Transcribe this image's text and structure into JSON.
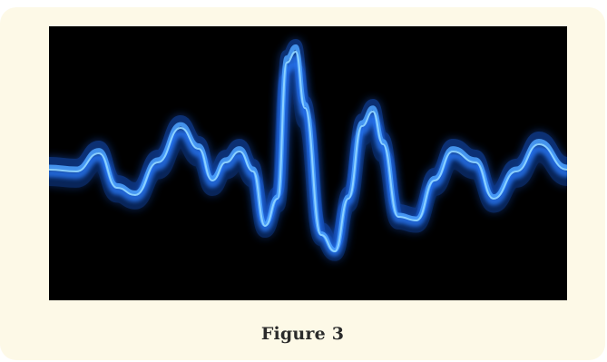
{
  "figure": {
    "caption": "Figure 3",
    "image_subject": "blue-light-sound-wave",
    "colors": {
      "card_background": "#fdf9e7",
      "image_background": "#000000",
      "wave_primary": "#1f6bff",
      "wave_highlight": "#8fd4ff"
    }
  }
}
